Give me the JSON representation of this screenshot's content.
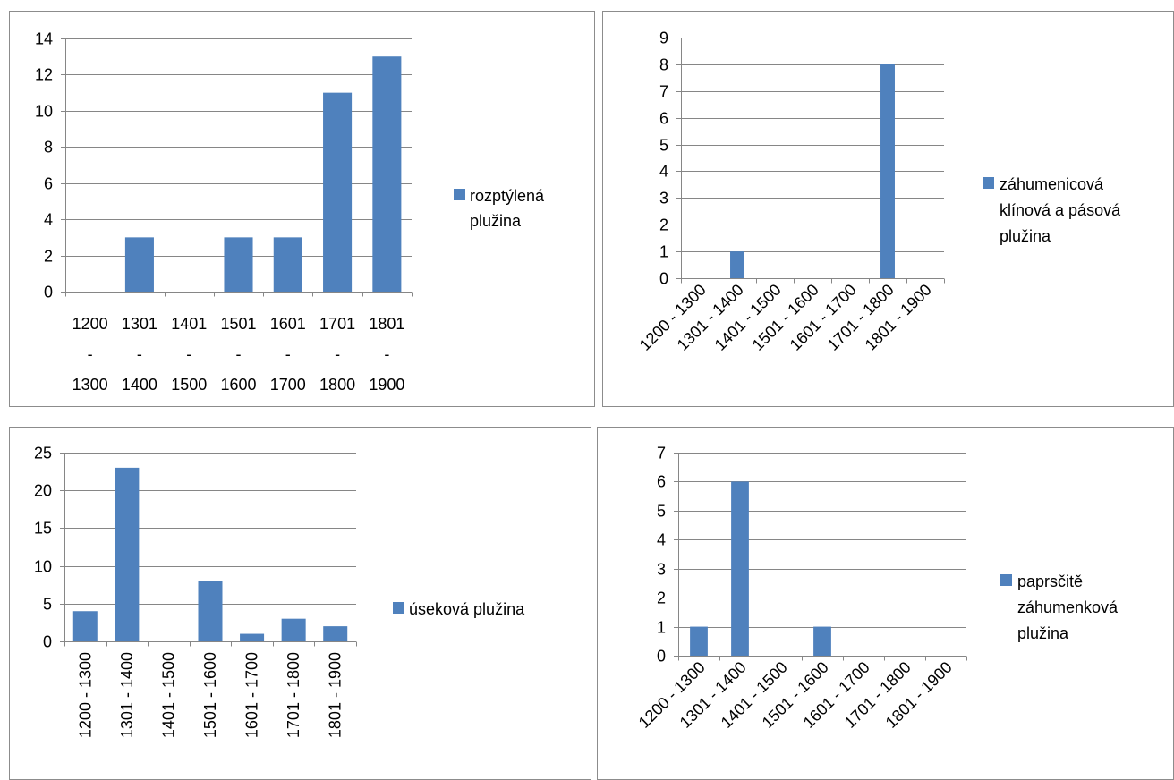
{
  "chart_data": [
    {
      "type": "bar",
      "categories": [
        "1200 - 1300",
        "1301 - 1400",
        "1401 - 1500",
        "1501 - 1600",
        "1601 - 1700",
        "1701 - 1800",
        "1801 - 1900"
      ],
      "category_lines": [
        [
          "1200",
          "-",
          "1300"
        ],
        [
          "1301",
          "-",
          "1400"
        ],
        [
          "1401",
          "-",
          "1500"
        ],
        [
          "1501",
          "-",
          "1600"
        ],
        [
          "1601",
          "-",
          "1700"
        ],
        [
          "1701",
          "-",
          "1800"
        ],
        [
          "1801",
          "-",
          "1900"
        ]
      ],
      "series": [
        {
          "name": "rozptýlená plužina",
          "name_lines": [
            "rozptýlená",
            "plužina"
          ],
          "values": [
            0,
            3,
            0,
            3,
            3,
            11,
            13
          ]
        }
      ],
      "ylim": [
        0,
        14
      ],
      "yticks": [
        0,
        2,
        4,
        6,
        8,
        10,
        12,
        14
      ],
      "grid": true,
      "legend": "right",
      "label_style": "stacked",
      "color": "#4f81bd"
    },
    {
      "type": "bar",
      "categories": [
        "1200 - 1300",
        "1301 - 1400",
        "1401 - 1500",
        "1501 - 1600",
        "1601 - 1700",
        "1701 - 1800",
        "1801 - 1900"
      ],
      "series": [
        {
          "name": "záhumenicová klínová a pásová plužina",
          "name_lines": [
            "záhumenicová",
            "klínová a pásová",
            "plužina"
          ],
          "values": [
            0,
            1,
            0,
            0,
            0,
            8,
            0
          ]
        }
      ],
      "ylim": [
        0,
        9
      ],
      "yticks": [
        0,
        1,
        2,
        3,
        4,
        5,
        6,
        7,
        8,
        9
      ],
      "grid": true,
      "legend": "right",
      "label_style": "diagonal",
      "color": "#4f81bd"
    },
    {
      "type": "bar",
      "categories": [
        "1200 - 1300",
        "1301 - 1400",
        "1401 - 1500",
        "1501 - 1600",
        "1601 - 1700",
        "1701 - 1800",
        "1801 - 1900"
      ],
      "series": [
        {
          "name": "úseková plužina",
          "name_lines": [
            "úseková plužina"
          ],
          "values": [
            4,
            23,
            0,
            8,
            1,
            3,
            2
          ]
        }
      ],
      "ylim": [
        0,
        25
      ],
      "yticks": [
        0,
        5,
        10,
        15,
        20,
        25
      ],
      "grid": true,
      "legend": "right",
      "label_style": "vertical",
      "color": "#4f81bd"
    },
    {
      "type": "bar",
      "categories": [
        "1200 - 1300",
        "1301 - 1400",
        "1401 - 1500",
        "1501 - 1600",
        "1601 - 1700",
        "1701 - 1800",
        "1801 - 1900"
      ],
      "series": [
        {
          "name": "paprsčitě záhumenková plužina",
          "name_lines": [
            "paprsčitě",
            "záhumenková",
            "plužina"
          ],
          "values": [
            1,
            6,
            0,
            1,
            0,
            0,
            0
          ]
        }
      ],
      "ylim": [
        0,
        7
      ],
      "yticks": [
        0,
        1,
        2,
        3,
        4,
        5,
        6,
        7
      ],
      "grid": true,
      "legend": "right",
      "label_style": "diagonal",
      "color": "#4f81bd"
    }
  ]
}
